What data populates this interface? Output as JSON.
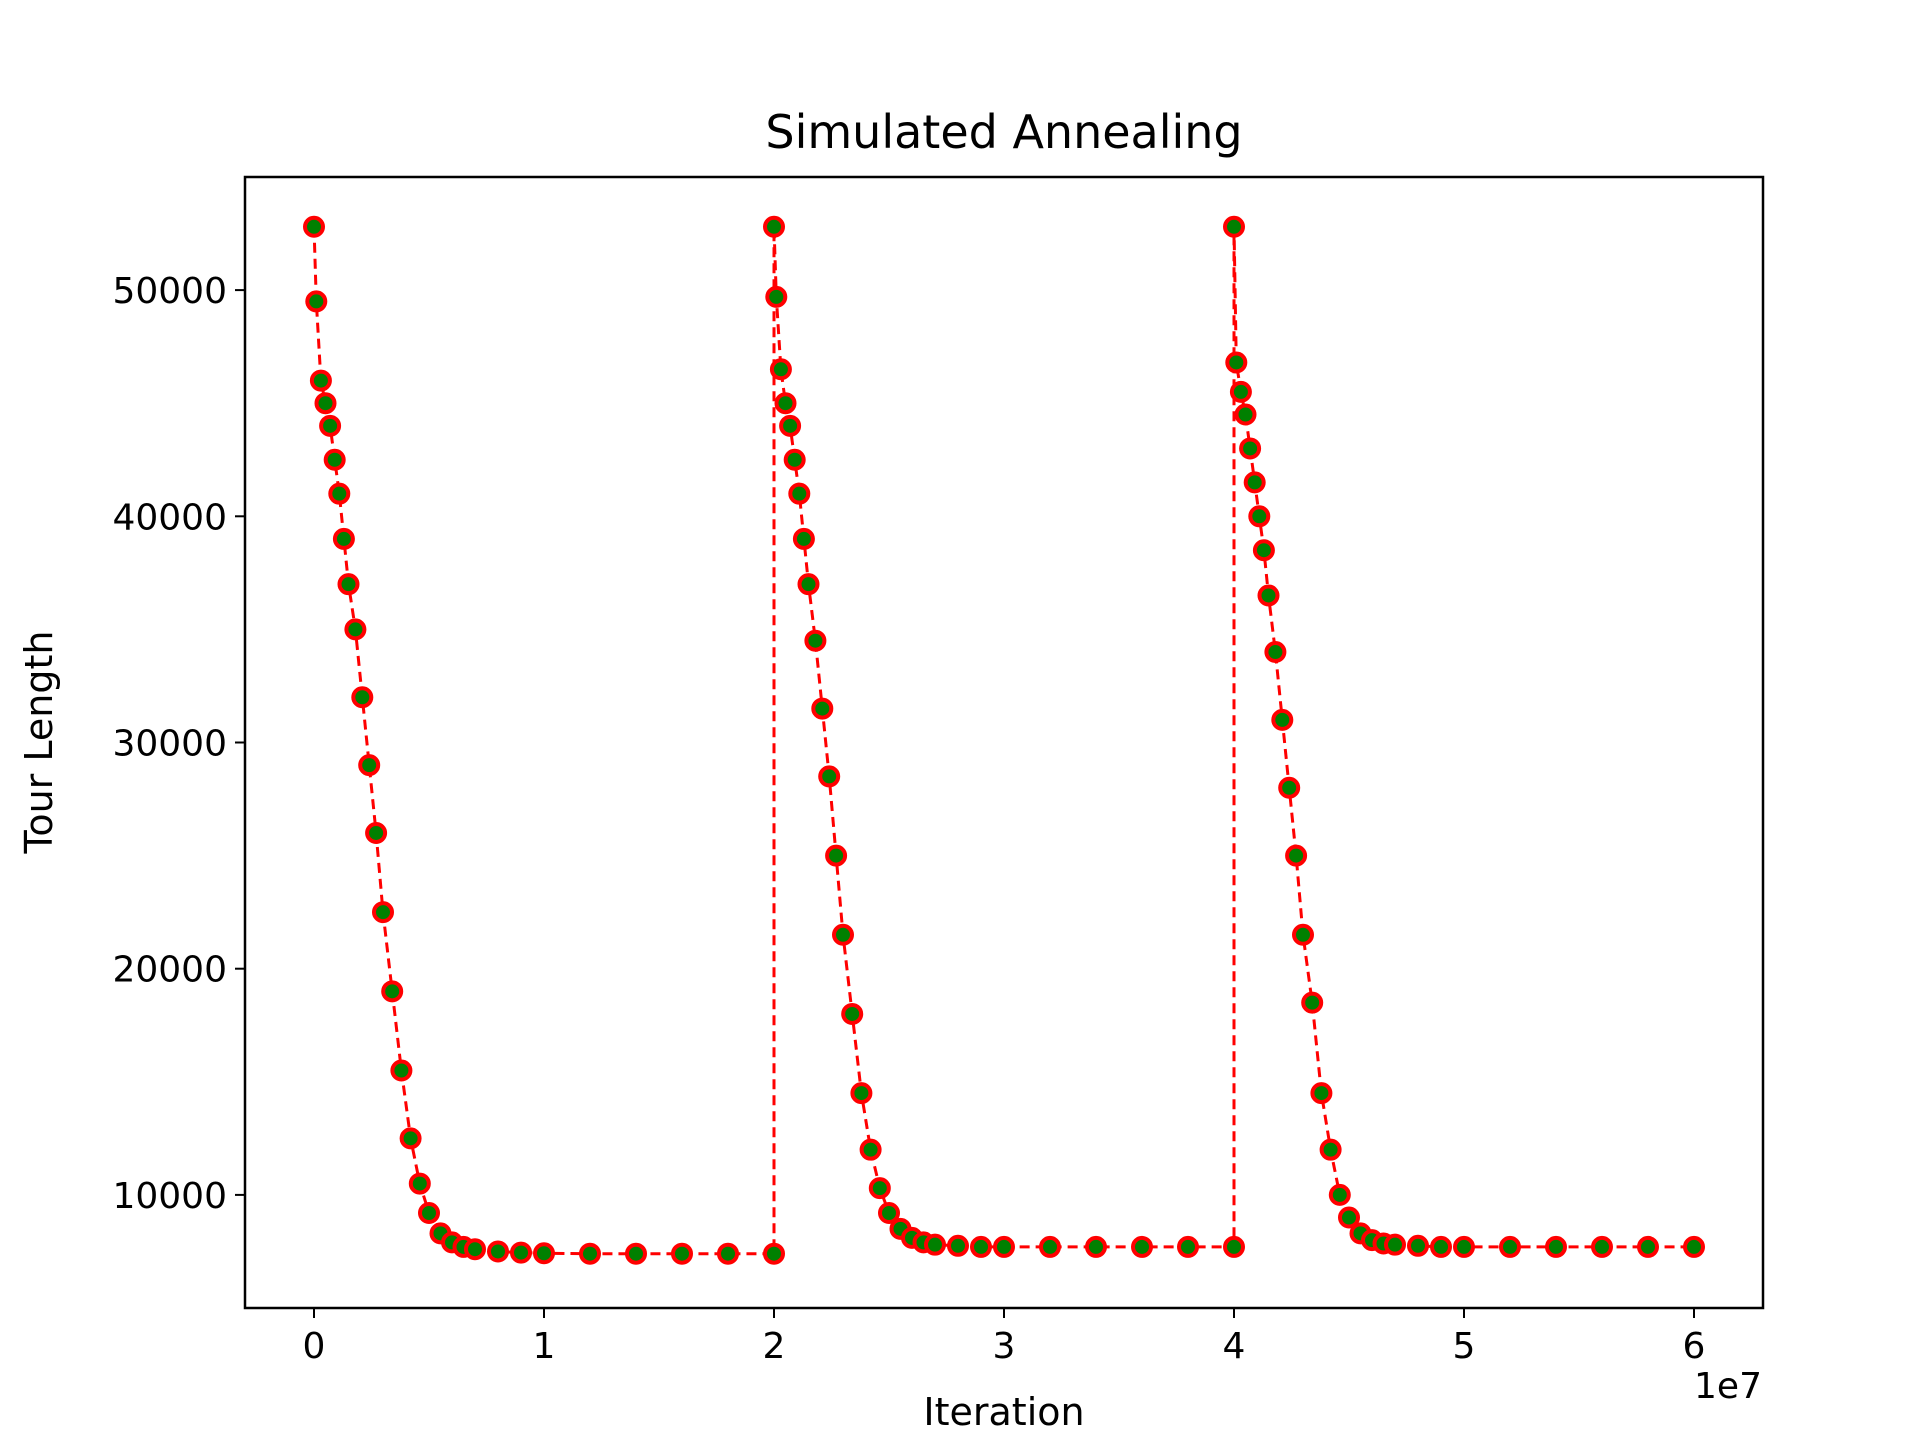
{
  "chart_data": {
    "type": "line",
    "title": "Simulated Annealing",
    "xlabel": "Iteration",
    "ylabel": "Tour Length",
    "x_offset_label": "1e7",
    "xlim": [
      -0.3,
      6.3
    ],
    "ylim": [
      5000,
      55000
    ],
    "x_ticks": [
      0,
      1,
      2,
      3,
      4,
      5,
      6
    ],
    "x_tick_labels": [
      "0",
      "1",
      "2",
      "3",
      "4",
      "5",
      "6"
    ],
    "y_ticks": [
      10000,
      20000,
      30000,
      40000,
      50000
    ],
    "y_tick_labels": [
      "10000",
      "20000",
      "30000",
      "40000",
      "50000"
    ],
    "x_unit_multiplier": 10000000,
    "grid": false,
    "legend": "none",
    "line_style": "dashed",
    "colors": {
      "line": "#ff0000",
      "marker_edge": "#ff0000",
      "marker_face": "#008000"
    },
    "series": [
      {
        "values_note": "",
        "x": [
          0.0,
          0.01,
          0.03,
          0.05,
          0.07,
          0.09,
          0.11,
          0.13,
          0.15,
          0.18,
          0.21,
          0.24,
          0.27,
          0.3,
          0.34,
          0.38,
          0.42,
          0.46,
          0.5,
          0.55,
          0.6,
          0.65,
          0.7,
          0.8,
          0.9,
          1.0,
          1.2,
          1.4,
          1.6,
          1.8,
          2.0,
          2.0,
          2.01,
          2.03,
          2.05,
          2.07,
          2.09,
          2.11,
          2.13,
          2.15,
          2.18,
          2.21,
          2.24,
          2.27,
          2.3,
          2.34,
          2.38,
          2.42,
          2.46,
          2.5,
          2.55,
          2.6,
          2.65,
          2.7,
          2.8,
          2.9,
          3.0,
          3.2,
          3.4,
          3.6,
          3.8,
          4.0,
          4.0,
          4.01,
          4.03,
          4.05,
          4.07,
          4.09,
          4.11,
          4.13,
          4.15,
          4.18,
          4.21,
          4.24,
          4.27,
          4.3,
          4.34,
          4.38,
          4.42,
          4.46,
          4.5,
          4.55,
          4.6,
          4.65,
          4.7,
          4.8,
          4.9,
          5.0,
          5.2,
          5.4,
          5.6,
          5.8,
          6.0
        ],
        "y": [
          52800,
          49500,
          46000,
          45000,
          44000,
          42500,
          41000,
          39000,
          37000,
          35000,
          32000,
          29000,
          26000,
          22500,
          19000,
          15500,
          12500,
          10500,
          9200,
          8300,
          7900,
          7700,
          7600,
          7500,
          7450,
          7420,
          7400,
          7400,
          7400,
          7400,
          7400,
          52800,
          49700,
          46500,
          45000,
          44000,
          42500,
          41000,
          39000,
          37000,
          34500,
          31500,
          28500,
          25000,
          21500,
          18000,
          14500,
          12000,
          10300,
          9200,
          8500,
          8100,
          7900,
          7800,
          7750,
          7700,
          7700,
          7700,
          7700,
          7700,
          7700,
          7700,
          52800,
          46800,
          45500,
          44500,
          43000,
          41500,
          40000,
          38500,
          36500,
          34000,
          31000,
          28000,
          25000,
          21500,
          18500,
          14500,
          12000,
          10000,
          9000,
          8300,
          8000,
          7850,
          7800,
          7750,
          7700,
          7700,
          7700,
          7700,
          7700,
          7700,
          7700
        ]
      }
    ]
  }
}
